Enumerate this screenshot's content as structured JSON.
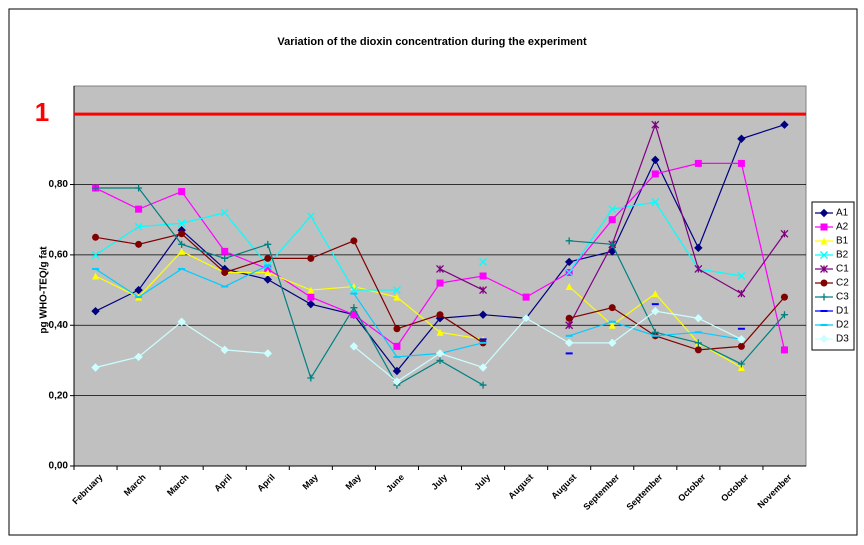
{
  "chart_data": {
    "type": "line",
    "title": "Variation of the dioxin concentration during the experiment",
    "y_label": "pg WHO-TEQ/g fat",
    "categories": [
      "February",
      "March",
      "March",
      "April",
      "April",
      "May",
      "May",
      "June",
      "July",
      "July",
      "August",
      "August",
      "September",
      "September",
      "October",
      "October",
      "November"
    ],
    "ylim": [
      0,
      1.08
    ],
    "yticks": [
      {
        "value": 0,
        "label": "0,00"
      },
      {
        "value": 0.2,
        "label": "0,20"
      },
      {
        "value": 0.4,
        "label": "0,40"
      },
      {
        "value": 0.6,
        "label": "0,60"
      },
      {
        "value": 0.8,
        "label": "0,80"
      }
    ],
    "grid": true,
    "legend": "right",
    "reference_line": {
      "value": 1,
      "color": "#ff0000"
    },
    "series": [
      {
        "name": "A1",
        "color": "#000080",
        "marker": "diamond",
        "values": [
          0.44,
          0.5,
          0.67,
          0.56,
          0.53,
          0.46,
          0.43,
          0.27,
          0.42,
          0.43,
          0.42,
          0.58,
          0.61,
          0.87,
          0.62,
          0.93,
          0.97
        ]
      },
      {
        "name": "A2",
        "color": "#ff00ff",
        "marker": "square",
        "values": [
          0.79,
          0.73,
          0.78,
          0.61,
          0.56,
          0.48,
          0.43,
          0.34,
          0.52,
          0.54,
          0.48,
          0.55,
          0.7,
          0.83,
          0.86,
          0.86,
          0.33
        ]
      },
      {
        "name": "B1",
        "color": "#ffff00",
        "marker": "triangle",
        "values": [
          0.54,
          0.48,
          0.61,
          0.55,
          0.55,
          0.5,
          0.51,
          0.48,
          0.38,
          0.36,
          null,
          0.51,
          0.4,
          0.49,
          0.35,
          0.28,
          null
        ]
      },
      {
        "name": "B2",
        "color": "#00ffff",
        "marker": "x",
        "values": [
          0.6,
          0.68,
          0.69,
          0.72,
          0.57,
          0.71,
          0.5,
          0.5,
          null,
          0.58,
          null,
          0.55,
          0.73,
          0.75,
          0.56,
          0.54,
          null
        ]
      },
      {
        "name": "C1",
        "color": "#800080",
        "marker": "star",
        "values": [
          null,
          null,
          null,
          null,
          null,
          null,
          null,
          null,
          0.56,
          0.5,
          null,
          0.4,
          0.63,
          0.97,
          0.56,
          0.49,
          0.66
        ]
      },
      {
        "name": "C2",
        "color": "#800000",
        "marker": "circle",
        "values": [
          0.65,
          0.63,
          0.66,
          0.55,
          0.59,
          0.59,
          0.64,
          0.39,
          0.43,
          0.35,
          null,
          0.42,
          0.45,
          0.37,
          0.33,
          0.34,
          0.48
        ]
      },
      {
        "name": "C3",
        "color": "#008080",
        "marker": "plus",
        "values": [
          0.79,
          0.79,
          0.63,
          0.59,
          0.63,
          0.25,
          0.45,
          0.23,
          0.3,
          0.23,
          null,
          0.64,
          0.63,
          0.38,
          0.35,
          0.29,
          0.43
        ]
      },
      {
        "name": "D1",
        "color": "#0000ff",
        "marker": "dash",
        "values": [
          null,
          null,
          null,
          null,
          null,
          null,
          null,
          null,
          null,
          0.36,
          null,
          0.32,
          null,
          0.46,
          null,
          0.39,
          null
        ]
      },
      {
        "name": "D2",
        "color": "#00ccff",
        "marker": "dash",
        "values": [
          0.56,
          0.48,
          0.56,
          0.51,
          0.57,
          null,
          0.49,
          0.31,
          0.32,
          0.35,
          null,
          0.37,
          0.41,
          0.37,
          0.38,
          0.36,
          null
        ]
      },
      {
        "name": "D3",
        "color": "#ccffff",
        "marker": "diamond",
        "values": [
          0.28,
          0.31,
          0.41,
          0.33,
          0.32,
          null,
          0.34,
          0.24,
          0.32,
          0.28,
          0.42,
          0.35,
          0.35,
          0.44,
          0.42,
          0.36,
          null
        ]
      }
    ]
  }
}
